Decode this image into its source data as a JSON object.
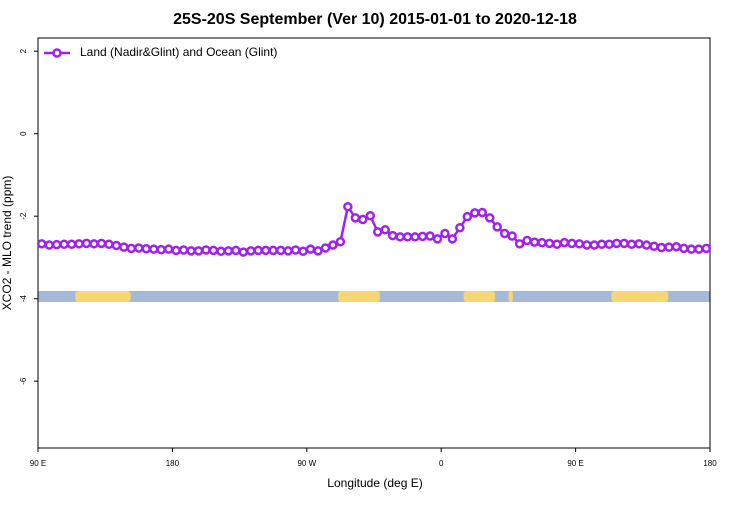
{
  "chart_data": {
    "type": "line",
    "title": "25S-20S September (Ver 10)   2015-01-01 to 2020-12-18",
    "x_label": "Longitude (deg E)",
    "y_label": "XCO2 - MLO trend (ppm)",
    "x": [
      92.5,
      97.5,
      102.5,
      107.5,
      112.5,
      117.5,
      122.5,
      127.5,
      132.5,
      137.5,
      142.5,
      147.5,
      152.5,
      157.5,
      162.5,
      167.5,
      172.5,
      177.5,
      182.5,
      187.5,
      192.5,
      197.5,
      202.5,
      207.5,
      212.5,
      217.5,
      222.5,
      227.5,
      232.5,
      237.5,
      242.5,
      247.5,
      252.5,
      257.5,
      262.5,
      267.5,
      272.5,
      277.5,
      282.5,
      287.5,
      292.5,
      297.5,
      302.5,
      307.5,
      312.5,
      317.5,
      322.5,
      327.5,
      332.5,
      337.5,
      342.5,
      347.5,
      352.5,
      357.5,
      362.5,
      367.5,
      372.5,
      377.5,
      382.5,
      387.5,
      392.5,
      397.5,
      402.5,
      407.5,
      412.5,
      417.5,
      422.5,
      427.5,
      432.5,
      437.5,
      442.5,
      447.5,
      452.5,
      457.5,
      462.5,
      467.5,
      472.5,
      477.5,
      482.5,
      487.5,
      492.5,
      497.5,
      502.5,
      507.5,
      512.5,
      517.5,
      522.5,
      527.5,
      532.5,
      537.5
    ],
    "series": [
      {
        "name": "Land (Nadir&Glint) and Ocean (Glint)",
        "color": "#a020f0",
        "values": [
          -2.67,
          -2.7,
          -2.69,
          -2.68,
          -2.68,
          -2.67,
          -2.66,
          -2.67,
          -2.66,
          -2.68,
          -2.71,
          -2.75,
          -2.78,
          -2.77,
          -2.79,
          -2.8,
          -2.81,
          -2.8,
          -2.83,
          -2.82,
          -2.84,
          -2.84,
          -2.82,
          -2.83,
          -2.85,
          -2.84,
          -2.83,
          -2.87,
          -2.84,
          -2.83,
          -2.83,
          -2.83,
          -2.83,
          -2.84,
          -2.82,
          -2.85,
          -2.8,
          -2.84,
          -2.77,
          -2.7,
          -2.62,
          -1.77,
          -2.04,
          -2.08,
          -1.99,
          -2.38,
          -2.33,
          -2.47,
          -2.5,
          -2.5,
          -2.5,
          -2.49,
          -2.48,
          -2.55,
          -2.42,
          -2.55,
          -2.28,
          -2.01,
          -1.92,
          -1.91,
          -2.04,
          -2.26,
          -2.42,
          -2.48,
          -2.67,
          -2.59,
          -2.63,
          -2.64,
          -2.66,
          -2.68,
          -2.64,
          -2.66,
          -2.67,
          -2.7,
          -2.7,
          -2.68,
          -2.68,
          -2.66,
          -2.66,
          -2.68,
          -2.67,
          -2.7,
          -2.73,
          -2.76,
          -2.75,
          -2.74,
          -2.78,
          -2.8,
          -2.8,
          -2.78
        ]
      }
    ],
    "xlim": [
      90,
      540
    ],
    "xticks": [
      90,
      180,
      {
        "value": 270,
        "label": "90 W"
      },
      {
        "value": 360,
        "label": "0"
      },
      {
        "value": 450,
        "label": "90 E"
      },
      {
        "value": 540,
        "label": "180"
      }
    ],
    "xtick_first_label": "90 E",
    "ylim": [
      -7.62,
      2.32
    ],
    "yticks": [
      2,
      0,
      -2,
      -4,
      -6
    ],
    "legend": "top-left",
    "land_spans": [
      [
        115,
        152
      ],
      [
        291,
        319
      ],
      [
        375,
        396
      ],
      [
        405,
        408
      ],
      [
        474,
        512
      ]
    ],
    "land_color": "#f7d673",
    "ocean_color": "#a5b9d9"
  }
}
